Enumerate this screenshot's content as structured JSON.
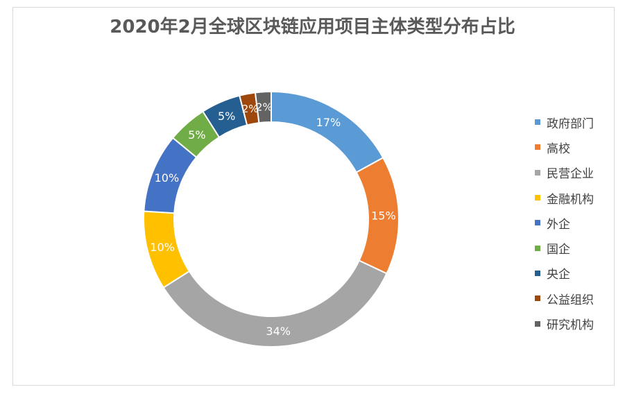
{
  "chart_data": {
    "type": "pie",
    "title": "2020年2月全球区块链应用项目主体类型分布占比",
    "categories": [
      "政府部门",
      "高校",
      "民营企业",
      "金融机构",
      "外企",
      "国企",
      "央企",
      "公益组织",
      "研究机构"
    ],
    "values": [
      17,
      15,
      34,
      10,
      10,
      5,
      5,
      2,
      2
    ],
    "labels": [
      "17%",
      "15%",
      "34%",
      "10%",
      "10%",
      "5%",
      "5%",
      "2%",
      "2%"
    ],
    "colors": [
      "#5B9BD5",
      "#ED7D31",
      "#A5A5A5",
      "#FFC000",
      "#4472C4",
      "#70AD47",
      "#255E91",
      "#9E480E",
      "#636363"
    ],
    "legend_position": "right",
    "donut": true
  }
}
